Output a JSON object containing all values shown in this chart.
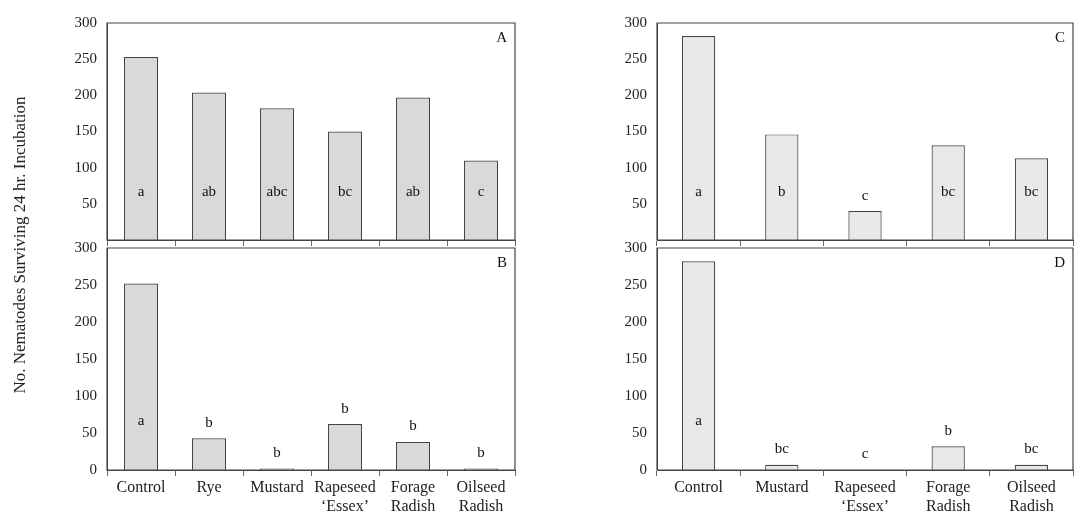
{
  "chart_data": [
    {
      "type": "bar",
      "ylabel": "No. Nematodes Surviving 24 hr. Incubation",
      "categories": [
        null,
        null,
        null,
        null,
        null,
        null
      ],
      "values": [
        253,
        204,
        182,
        150,
        197,
        110
      ],
      "value_labels": [
        "a",
        "ab",
        "abc",
        "bc",
        "ab",
        "c"
      ],
      "color": "#d9d9d9",
      "ylim": [
        0,
        300
      ],
      "yticks": [
        50,
        100,
        150,
        200,
        250,
        300
      ],
      "tick_labels": "y",
      "annotations": [
        "A"
      ]
    },
    {
      "type": "bar",
      "categories": [
        "Control",
        "Rye",
        "Mustard",
        "Rapeseed\n‘Essex’",
        "Forage\nRadish",
        "Oilseed\nRadish"
      ],
      "values": [
        252,
        43,
        2,
        62,
        38,
        2
      ],
      "value_labels": [
        "a",
        "b",
        "b",
        "b",
        "b",
        "b"
      ],
      "color": "#d9d9d9",
      "ylim": [
        0,
        300
      ],
      "yticks": [
        0,
        50,
        100,
        150,
        200,
        250,
        300
      ],
      "annotations": [
        "B"
      ]
    },
    {
      "type": "bar",
      "categories": [
        null,
        null,
        null,
        null,
        null
      ],
      "values": [
        282,
        146,
        40,
        131,
        113
      ],
      "value_labels": [
        "a",
        "b",
        "c",
        "bc",
        "bc"
      ],
      "color": "#e8e8e8",
      "ylim": [
        0,
        300
      ],
      "yticks": [
        50,
        100,
        150,
        200,
        250,
        300
      ],
      "tick_labels": "y",
      "annotations": [
        "C"
      ]
    },
    {
      "type": "bar",
      "categories": [
        "Control",
        "Mustard",
        "Rapeseed\n‘Essex’",
        "Forage\nRadish",
        "Oilseed\nRadish"
      ],
      "values": [
        282,
        7,
        0,
        32,
        7
      ],
      "value_labels": [
        "a",
        "bc",
        "c",
        "b",
        "bc"
      ],
      "color": "#e8e8e8",
      "ylim": [
        0,
        300
      ],
      "yticks": [
        0,
        50,
        100,
        150,
        200,
        250,
        300
      ],
      "annotations": [
        "D"
      ]
    }
  ]
}
